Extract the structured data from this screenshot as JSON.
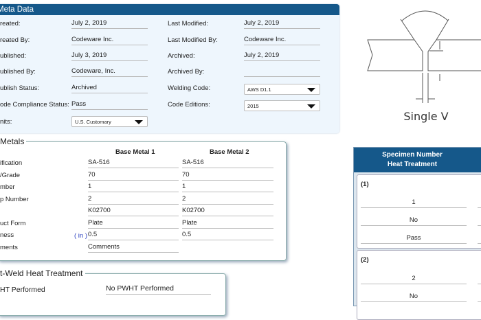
{
  "meta": {
    "title": "Meta Data",
    "left": [
      {
        "label": "reated:",
        "value": "July 2, 2019"
      },
      {
        "label": "reated By:",
        "value": "Codeware Inc."
      },
      {
        "label": "ublished:",
        "value": "July 3, 2019"
      },
      {
        "label": "ublished By:",
        "value": "Codeware, Inc."
      },
      {
        "label": "ublish Status:",
        "value": "Archived"
      },
      {
        "label": "ode Compliance Status:",
        "value": "Pass"
      }
    ],
    "units_label": "nits:",
    "units_value": "U.S. Customary",
    "right": [
      {
        "label": "Last Modified:",
        "value": "July 2, 2019"
      },
      {
        "label": "Last Modified By:",
        "value": "Codeware Inc."
      },
      {
        "label": "Archived:",
        "value": "July 2, 2019"
      },
      {
        "label": "Archived By:",
        "value": ""
      }
    ],
    "welding_code_label": "Welding Code:",
    "welding_code": "AWS D1.1",
    "code_editions_label": "Code Editions:",
    "code_edition": "2015"
  },
  "base_metals": {
    "title": "Metals",
    "col1": "Base Metal 1",
    "col2": "Base Metal 2",
    "unit": "( in )",
    "rows": [
      {
        "label": "ification",
        "v1": "SA-516",
        "v2": "SA-516"
      },
      {
        "label": "/Grade",
        "v1": "70",
        "v2": "70"
      },
      {
        "label": "mber",
        "v1": "1",
        "v2": "1"
      },
      {
        "label": "p Number",
        "v1": "2",
        "v2": "2"
      },
      {
        "label": "",
        "v1": "K02700",
        "v2": "K02700"
      },
      {
        "label": "uct Form",
        "v1": "Plate",
        "v2": "Plate"
      },
      {
        "label": "ness",
        "v1": "0.5",
        "v2": "0.5"
      },
      {
        "label": "ments",
        "v1": "Comments"
      }
    ]
  },
  "pwht": {
    "title": "t-Weld Heat Treatment",
    "label": "HT Performed",
    "value": "No PWHT Performed"
  },
  "diagram": {
    "caption": "Single V"
  },
  "specimen": {
    "header1": "Specimen Number",
    "header2": "Heat Treatment",
    "cards": [
      {
        "num": "(1)",
        "values": [
          "1",
          "No",
          "Pass"
        ]
      },
      {
        "num": "(2)",
        "values": [
          "2",
          "No"
        ]
      }
    ]
  }
}
